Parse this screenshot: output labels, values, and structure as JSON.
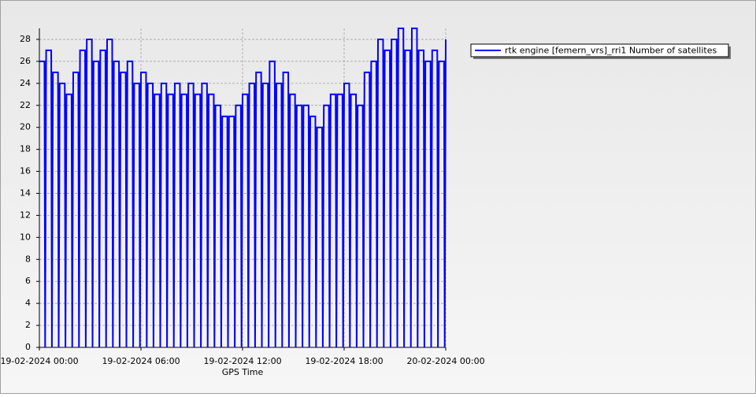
{
  "chart_data": {
    "type": "line",
    "xlabel": "GPS Time",
    "x": [
      0,
      0.3,
      0.34,
      0.4,
      0.7,
      0.74,
      0.8,
      1.1,
      1.14,
      1.2,
      1.5,
      1.54,
      1.6,
      1.9,
      1.94,
      2,
      2.3,
      2.34,
      2.4,
      2.7,
      2.74,
      2.8,
      3.1,
      3.14,
      3.2,
      3.5,
      3.54,
      3.6,
      3.9,
      3.94,
      4,
      4.3,
      4.34,
      4.4,
      4.7,
      4.74,
      4.8,
      5.1,
      5.14,
      5.2,
      5.5,
      5.54,
      5.6,
      5.9,
      5.94,
      6,
      6.3,
      6.34,
      6.4,
      6.7,
      6.74,
      6.8,
      7.1,
      7.14,
      7.2,
      7.5,
      7.54,
      7.6,
      7.9,
      7.94,
      8,
      8.3,
      8.34,
      8.4,
      8.7,
      8.74,
      8.8,
      9.1,
      9.14,
      9.2,
      9.5,
      9.54,
      9.6,
      9.9,
      9.94,
      10,
      10.3,
      10.34,
      10.4,
      10.7,
      10.74,
      10.8,
      11.1,
      11.14,
      11.2,
      11.5,
      11.54,
      11.6,
      11.9,
      11.94,
      12,
      12.3,
      12.34,
      12.4,
      12.7,
      12.74,
      12.8,
      13.1,
      13.14,
      13.2,
      13.5,
      13.54,
      13.6,
      13.9,
      13.94,
      14,
      14.3,
      14.34,
      14.4,
      14.7,
      14.74,
      14.8,
      15.1,
      15.14,
      15.2,
      15.5,
      15.54,
      15.6,
      15.9,
      15.94,
      16,
      16.3,
      16.34,
      16.4,
      16.7,
      16.74,
      16.8,
      17.1,
      17.14,
      17.2,
      17.5,
      17.54,
      17.6,
      17.9,
      17.94,
      18,
      18.3,
      18.34,
      18.4,
      18.7,
      18.74,
      18.8,
      19.1,
      19.14,
      19.2,
      19.5,
      19.54,
      19.6,
      19.9,
      19.94,
      20,
      20.3,
      20.34,
      20.4,
      20.7,
      20.74,
      20.8,
      21.1,
      21.14,
      21.2,
      21.5,
      21.54,
      21.6,
      21.9,
      21.94,
      22,
      22.3,
      22.34,
      22.4,
      22.7,
      22.74,
      22.8,
      23.1,
      23.14,
      23.2,
      23.5,
      23.54,
      23.6,
      23.9,
      23.94,
      24
    ],
    "series": [
      {
        "name": "rtk engine [femern_vrs]_rri1 Number of satellites",
        "color": "#0000ff",
        "values": [
          26,
          26,
          0,
          27,
          27,
          0,
          25,
          25,
          0,
          24,
          24,
          0,
          23,
          23,
          0,
          25,
          25,
          0,
          27,
          27,
          0,
          28,
          28,
          0,
          26,
          26,
          0,
          27,
          27,
          0,
          28,
          28,
          0,
          26,
          26,
          0,
          25,
          25,
          0,
          26,
          26,
          0,
          24,
          24,
          0,
          25,
          25,
          0,
          24,
          24,
          0,
          23,
          23,
          0,
          24,
          24,
          0,
          23,
          23,
          0,
          24,
          24,
          0,
          23,
          23,
          0,
          24,
          24,
          0,
          23,
          23,
          0,
          24,
          24,
          0,
          23,
          23,
          0,
          22,
          22,
          0,
          21,
          21,
          0,
          21,
          21,
          0,
          22,
          22,
          0,
          23,
          23,
          0,
          24,
          24,
          0,
          25,
          25,
          0,
          24,
          24,
          0,
          26,
          26,
          0,
          24,
          24,
          0,
          25,
          25,
          0,
          23,
          23,
          0,
          22,
          22,
          0,
          22,
          22,
          0,
          21,
          21,
          0,
          20,
          20,
          0,
          22,
          22,
          0,
          23,
          23,
          0,
          23,
          23,
          0,
          24,
          24,
          0,
          23,
          23,
          0,
          22,
          22,
          0,
          25,
          25,
          0,
          26,
          26,
          0,
          28,
          28,
          0,
          27,
          27,
          0,
          28,
          28,
          0,
          29,
          29,
          0,
          27,
          27,
          0,
          29,
          29,
          0,
          27,
          27,
          0,
          26,
          26,
          0,
          27,
          27,
          0,
          26,
          26,
          0,
          28
        ]
      }
    ],
    "xlim": [
      0,
      24
    ],
    "xticks": [
      {
        "value": 0,
        "label": "19-02-2024 00:00"
      },
      {
        "value": 6,
        "label": "19-02-2024 06:00"
      },
      {
        "value": 12,
        "label": "19-02-2024 12:00"
      },
      {
        "value": 18,
        "label": "19-02-2024 18:00"
      },
      {
        "value": 24,
        "label": "20-02-2024 00:00"
      }
    ],
    "ylim": [
      0,
      29
    ],
    "yticks": [
      0,
      2,
      4,
      6,
      8,
      10,
      12,
      14,
      16,
      18,
      20,
      22,
      24,
      26,
      28
    ],
    "grid": true
  }
}
